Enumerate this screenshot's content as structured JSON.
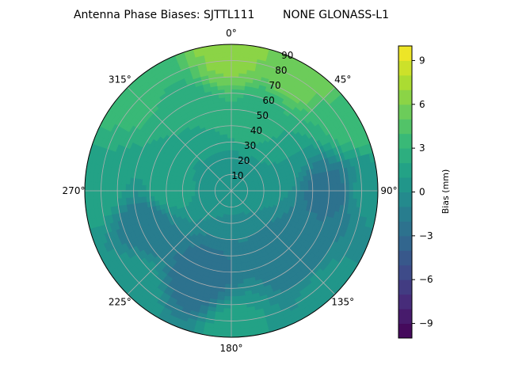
{
  "chart_data": {
    "type": "heatmap",
    "projection": "polar",
    "title": "Antenna Phase Biases: SJTTL111        NONE GLONASS-L1",
    "azimuth_ticks": [
      {
        "deg": 0,
        "label": "0°"
      },
      {
        "deg": 45,
        "label": "45°"
      },
      {
        "deg": 90,
        "label": "90°"
      },
      {
        "deg": 135,
        "label": "135°"
      },
      {
        "deg": 180,
        "label": "180°"
      },
      {
        "deg": 225,
        "label": "225°"
      },
      {
        "deg": 270,
        "label": "270°"
      },
      {
        "deg": 315,
        "label": "315°"
      }
    ],
    "radial_ticks": [
      {
        "value": 10,
        "label": "10"
      },
      {
        "value": 20,
        "label": "20"
      },
      {
        "value": 30,
        "label": "30"
      },
      {
        "value": 40,
        "label": "40"
      },
      {
        "value": 50,
        "label": "50"
      },
      {
        "value": 60,
        "label": "60"
      },
      {
        "value": 70,
        "label": "70"
      },
      {
        "value": 80,
        "label": "80"
      },
      {
        "value": 90,
        "label": "90"
      }
    ],
    "radial_range": [
      0,
      90
    ],
    "theta_zero": "north",
    "theta_direction": "clockwise",
    "grid": true,
    "colorbar": {
      "label": "Bias (mm)",
      "range": [
        -10,
        10
      ],
      "levels": 20,
      "colormap": "viridis",
      "ticks": [
        {
          "value": 9,
          "label": "9"
        },
        {
          "value": 6,
          "label": "6"
        },
        {
          "value": 3,
          "label": "3"
        },
        {
          "value": 0,
          "label": "0"
        },
        {
          "value": -3,
          "label": "−3"
        },
        {
          "value": -6,
          "label": "−6"
        },
        {
          "value": -9,
          "label": "−9"
        }
      ]
    },
    "field_samples": [
      {
        "az": 0,
        "zen": 85,
        "bias": 6.5
      },
      {
        "az": 30,
        "zen": 85,
        "bias": 6.0
      },
      {
        "az": 60,
        "zen": 85,
        "bias": 3.5
      },
      {
        "az": 90,
        "zen": 85,
        "bias": 0.5
      },
      {
        "az": 135,
        "zen": 85,
        "bias": 0.5
      },
      {
        "az": 180,
        "zen": 85,
        "bias": 1.5
      },
      {
        "az": 225,
        "zen": 85,
        "bias": 1.0
      },
      {
        "az": 270,
        "zen": 85,
        "bias": 2.0
      },
      {
        "az": 315,
        "zen": 85,
        "bias": 3.5
      },
      {
        "az": 90,
        "zen": 60,
        "bias": -2.5
      },
      {
        "az": 135,
        "zen": 55,
        "bias": -2.0
      },
      {
        "az": 200,
        "zen": 60,
        "bias": -3.0
      },
      {
        "az": 250,
        "zen": 55,
        "bias": -2.0
      },
      {
        "az": 330,
        "zen": 50,
        "bias": 2.0
      },
      {
        "az": 20,
        "zen": 45,
        "bias": 2.5
      },
      {
        "az": 60,
        "zen": 30,
        "bias": 1.0
      },
      {
        "az": 270,
        "zen": 40,
        "bias": 1.5
      },
      {
        "az": 0,
        "zen": 5,
        "bias": 0.0
      }
    ]
  },
  "colors": {
    "grid": "#b0b0b0",
    "axes": "#000000",
    "background": "#ffffff"
  }
}
